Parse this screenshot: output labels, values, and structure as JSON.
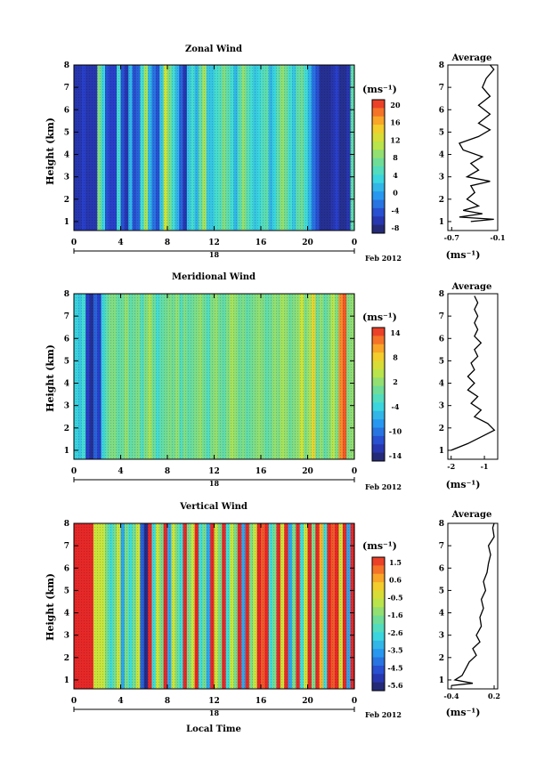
{
  "chart_data": [
    {
      "type": "heatmap",
      "title": "Zonal Wind",
      "ylabel": "Height (km)",
      "xlabel": "",
      "x_ticks": [
        "0",
        "4",
        "8",
        "12",
        "16",
        "20",
        "0"
      ],
      "y_ticks": [
        "1",
        "2",
        "3",
        "4",
        "5",
        "6",
        "7",
        "8"
      ],
      "date_label": "18",
      "month_label": "Feb 2012",
      "xlim": [
        0,
        24
      ],
      "ylim": [
        0.6,
        8
      ],
      "colorbar": {
        "unit": "(ms⁻¹)",
        "ticks": [
          "20",
          "16",
          "12",
          "8",
          "4",
          "0",
          "-4",
          "-8"
        ],
        "range": [
          -10,
          22
        ]
      },
      "column_values": [
        -7,
        -7,
        -6,
        -7,
        -7,
        -7,
        8,
        3,
        -5,
        -6,
        -6,
        4,
        -5,
        -7,
        1,
        -5,
        -4,
        4,
        10,
        1,
        -3,
        -5,
        2,
        12,
        8,
        4,
        1,
        -4,
        -7,
        2,
        4,
        1,
        6,
        10,
        2,
        2,
        4,
        5,
        8,
        6,
        4,
        1,
        5,
        9,
        6,
        4,
        2,
        3,
        5,
        6,
        1,
        3,
        6,
        9,
        7,
        4,
        2,
        6,
        7,
        4,
        1,
        -3,
        -5,
        -8,
        -8,
        -8,
        -7,
        -6,
        -8,
        -8,
        -7,
        6
      ],
      "average": {
        "title": "Average",
        "xlabel": "(ms⁻¹)",
        "x_ticks": [
          "-0.7",
          "-0.1"
        ],
        "xlim": [
          -0.75,
          -0.1
        ],
        "profile": [
          [
            -0.45,
            1.0
          ],
          [
            -0.15,
            1.1
          ],
          [
            -0.6,
            1.2
          ],
          [
            -0.3,
            1.35
          ],
          [
            -0.55,
            1.5
          ],
          [
            -0.35,
            1.7
          ],
          [
            -0.5,
            2.0
          ],
          [
            -0.4,
            2.3
          ],
          [
            -0.45,
            2.6
          ],
          [
            -0.2,
            2.8
          ],
          [
            -0.5,
            3.0
          ],
          [
            -0.35,
            3.3
          ],
          [
            -0.45,
            3.6
          ],
          [
            -0.3,
            3.9
          ],
          [
            -0.55,
            4.2
          ],
          [
            -0.6,
            4.5
          ],
          [
            -0.35,
            4.8
          ],
          [
            -0.2,
            5.1
          ],
          [
            -0.35,
            5.4
          ],
          [
            -0.2,
            5.8
          ],
          [
            -0.35,
            6.2
          ],
          [
            -0.2,
            6.6
          ],
          [
            -0.3,
            7.0
          ],
          [
            -0.25,
            7.4
          ],
          [
            -0.15,
            7.8
          ],
          [
            -0.2,
            8.0
          ]
        ]
      }
    },
    {
      "type": "heatmap",
      "title": "Meridional Wind",
      "ylabel": "Height (km)",
      "xlabel": "",
      "x_ticks": [
        "0",
        "4",
        "8",
        "12",
        "16",
        "20",
        "0"
      ],
      "y_ticks": [
        "1",
        "2",
        "3",
        "4",
        "5",
        "6",
        "7",
        "8"
      ],
      "date_label": "18",
      "month_label": "Feb 2012",
      "xlim": [
        0,
        24
      ],
      "ylim": [
        0.6,
        8
      ],
      "colorbar": {
        "unit": "(ms⁻¹)",
        "ticks": [
          "14",
          "8",
          "2",
          "-4",
          "-10",
          "-14"
        ],
        "range": [
          -16,
          16
        ]
      },
      "column_values": [
        -3,
        -4,
        -2,
        -12,
        -14,
        -10,
        -12,
        -3,
        0,
        2,
        2,
        0,
        1,
        3,
        0,
        1,
        2,
        -1,
        2,
        4,
        1,
        -2,
        0,
        1,
        2,
        1,
        3,
        -1,
        2,
        0,
        1,
        2,
        3,
        1,
        -1,
        2,
        3,
        1,
        0,
        2,
        4,
        3,
        1,
        2,
        0,
        1,
        2,
        3,
        2,
        0,
        1,
        3,
        2,
        4,
        3,
        1,
        2,
        3,
        6,
        2,
        4,
        8,
        1,
        3,
        0,
        2,
        5,
        2,
        12,
        14,
        2,
        3
      ],
      "average": {
        "title": "Average",
        "xlabel": "(ms⁻¹)",
        "x_ticks": [
          "-2",
          "-1"
        ],
        "xlim": [
          -2.1,
          -0.6
        ],
        "profile": [
          [
            -2.0,
            1.0
          ],
          [
            -1.5,
            1.3
          ],
          [
            -1.1,
            1.6
          ],
          [
            -0.7,
            1.9
          ],
          [
            -0.9,
            2.2
          ],
          [
            -1.3,
            2.5
          ],
          [
            -1.1,
            2.8
          ],
          [
            -1.4,
            3.1
          ],
          [
            -1.2,
            3.4
          ],
          [
            -1.5,
            3.7
          ],
          [
            -1.3,
            4.0
          ],
          [
            -1.5,
            4.3
          ],
          [
            -1.3,
            4.6
          ],
          [
            -1.4,
            4.9
          ],
          [
            -1.2,
            5.2
          ],
          [
            -1.3,
            5.5
          ],
          [
            -1.1,
            5.8
          ],
          [
            -1.3,
            6.1
          ],
          [
            -1.2,
            6.4
          ],
          [
            -1.3,
            6.7
          ],
          [
            -1.2,
            7.0
          ],
          [
            -1.3,
            7.3
          ],
          [
            -1.2,
            7.6
          ],
          [
            -1.3,
            7.9
          ]
        ]
      }
    },
    {
      "type": "heatmap",
      "title": "Vertical Wind",
      "ylabel": "Height (km)",
      "xlabel": "Local Time",
      "x_ticks": [
        "0",
        "4",
        "8",
        "12",
        "16",
        "20",
        "0"
      ],
      "y_ticks": [
        "1",
        "2",
        "3",
        "4",
        "5",
        "6",
        "7",
        "8"
      ],
      "date_label": "18",
      "month_label": "Feb 2012",
      "xlim": [
        0,
        24
      ],
      "ylim": [
        0.6,
        8
      ],
      "colorbar": {
        "unit": "(ms⁻¹)",
        "ticks": [
          "1.5",
          "0.6",
          "-0.5",
          "-1.6",
          "-2.6",
          "-3.5",
          "-4.5",
          "-5.6"
        ],
        "range": [
          -6,
          2
        ]
      },
      "column_values": [
        2,
        2,
        2,
        2,
        2,
        -0.5,
        -0.5,
        -0.6,
        -1.6,
        -2.6,
        -1.6,
        -0.5,
        -3.5,
        -1.6,
        -2.6,
        -1.6,
        -0.5,
        -4.5,
        -5.6,
        2,
        -2.6,
        -0.5,
        -1.6,
        2,
        -3.5,
        -0.5,
        -1.6,
        -2.6,
        2,
        -1.6,
        -0.6,
        2,
        -2.6,
        -1.6,
        -3.5,
        2,
        -0.5,
        -1.6,
        2,
        -2.6,
        -0.6,
        -1.6,
        2,
        -3.5,
        2,
        -1.6,
        -0.5,
        2,
        1.5,
        2,
        -2.6,
        -1.6,
        2,
        -0.5,
        2,
        -3.5,
        -1.6,
        2,
        -2.6,
        -0.5,
        2,
        -1.6,
        2,
        0.6,
        -2.6,
        2,
        1.5,
        2,
        -0.5,
        2,
        -3.5,
        2
      ],
      "average": {
        "title": "Average",
        "xlabel": "(ms⁻¹)",
        "x_ticks": [
          "-0.4",
          "0.2"
        ],
        "xlim": [
          -0.45,
          0.25
        ],
        "profile": [
          [
            -0.4,
            0.75
          ],
          [
            -0.1,
            0.85
          ],
          [
            -0.35,
            1.0
          ],
          [
            -0.25,
            1.2
          ],
          [
            -0.2,
            1.5
          ],
          [
            -0.15,
            1.8
          ],
          [
            -0.05,
            2.1
          ],
          [
            -0.1,
            2.4
          ],
          [
            0.0,
            2.7
          ],
          [
            -0.05,
            3.0
          ],
          [
            0.02,
            3.4
          ],
          [
            0.0,
            3.8
          ],
          [
            0.05,
            4.2
          ],
          [
            0.02,
            4.6
          ],
          [
            0.08,
            5.0
          ],
          [
            0.05,
            5.4
          ],
          [
            0.1,
            5.8
          ],
          [
            0.12,
            6.2
          ],
          [
            0.15,
            6.6
          ],
          [
            0.12,
            7.0
          ],
          [
            0.2,
            7.4
          ],
          [
            0.18,
            7.8
          ],
          [
            0.2,
            8.0
          ]
        ]
      }
    }
  ]
}
